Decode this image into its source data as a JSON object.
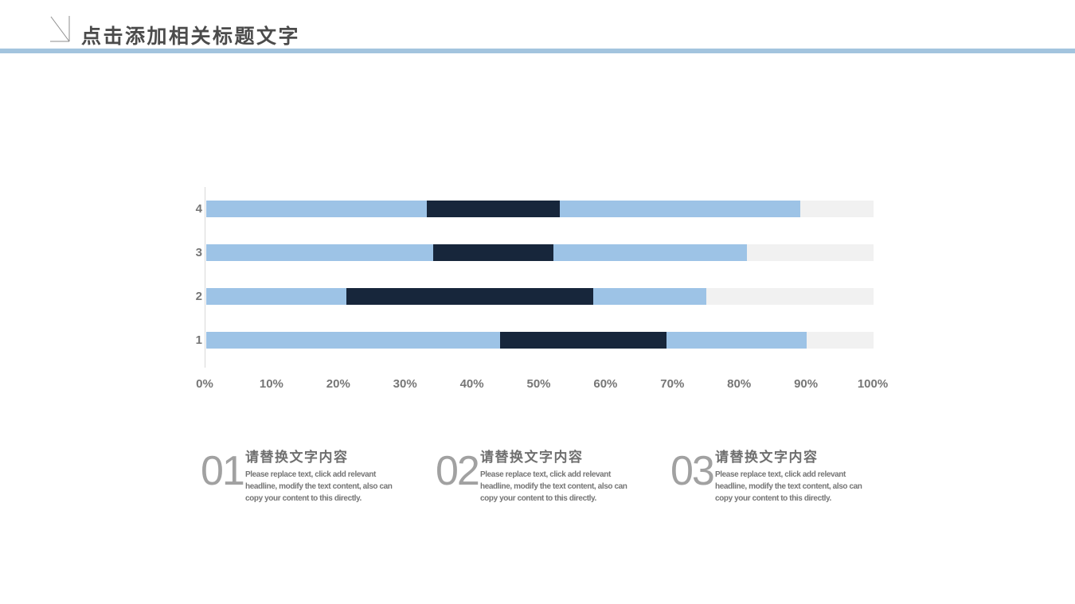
{
  "header": {
    "title": "点击添加相关标题文字"
  },
  "colors": {
    "divider_accent": "#A3C4DE",
    "bar_light_blue": "#9DC3E6",
    "bar_dark_navy": "#17263B",
    "bar_track_gray": "#F1F1F1",
    "axis_line": "#D9D9D9",
    "label_gray": "#767676"
  },
  "chart_data": {
    "type": "bar",
    "orientation": "horizontal",
    "stacked": true,
    "title": "",
    "xlabel": "",
    "ylabel": "",
    "xlim": [
      0,
      100
    ],
    "grid": false,
    "legend": false,
    "categories": [
      "4",
      "3",
      "2",
      "1"
    ],
    "series": [
      {
        "name": "segment-light-blue-left",
        "color": "#9DC3E6",
        "values": [
          33,
          34,
          21,
          44
        ]
      },
      {
        "name": "segment-dark-navy",
        "color": "#17263B",
        "values": [
          20,
          18,
          37,
          25
        ]
      },
      {
        "name": "segment-light-blue-right",
        "color": "#9DC3E6",
        "values": [
          36,
          29,
          17,
          21
        ]
      }
    ],
    "track_color": "#F1F1F1",
    "track_total": 100,
    "x_ticks": [
      "0%",
      "10%",
      "20%",
      "30%",
      "40%",
      "50%",
      "60%",
      "70%",
      "80%",
      "90%",
      "100%"
    ]
  },
  "callouts": [
    {
      "number": "01",
      "heading": "请替换文字内容",
      "body": "Please replace text, click add relevant headline, modify the text content, also can copy your content to this directly."
    },
    {
      "number": "02",
      "heading": "请替换文字内容",
      "body": "Please replace text, click add relevant headline, modify the text content, also can copy your content to this directly."
    },
    {
      "number": "03",
      "heading": "请替换文字内容",
      "body": "Please replace text, click add relevant headline, modify the text content, also can copy your content to this directly."
    }
  ]
}
